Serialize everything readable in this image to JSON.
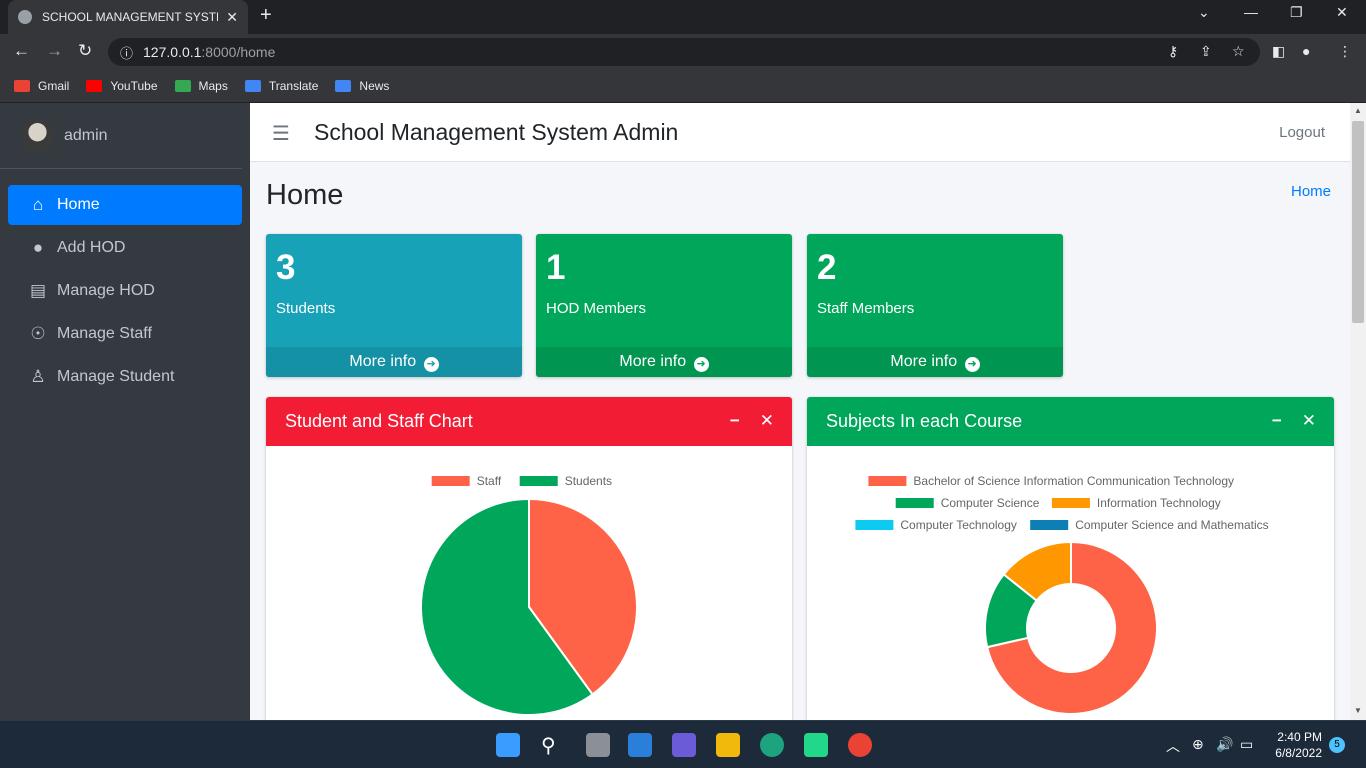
{
  "browser": {
    "tab_title": "SCHOOL MANAGEMENT SYSTEM",
    "url_host": "127.0.0.1",
    "url_path": ":8000/home",
    "bookmarks": [
      {
        "label": "Gmail",
        "color": "#ea4335"
      },
      {
        "label": "YouTube",
        "color": "#ff0000"
      },
      {
        "label": "Maps",
        "color": "#34a853"
      },
      {
        "label": "Translate",
        "color": "#4285f4"
      },
      {
        "label": "News",
        "color": "#4285f4"
      }
    ]
  },
  "sidebar": {
    "username": "admin",
    "items": [
      {
        "label": "Home",
        "icon": "home-icon",
        "active": true
      },
      {
        "label": "Add HOD",
        "icon": "user-icon"
      },
      {
        "label": "Manage HOD",
        "icon": "id-card-icon"
      },
      {
        "label": "Manage Staff",
        "icon": "universal-access-icon"
      },
      {
        "label": "Manage Student",
        "icon": "child-icon"
      }
    ]
  },
  "header": {
    "brand": "School Management System Admin",
    "logout": "Logout"
  },
  "content": {
    "title": "Home",
    "breadcrumb": "Home"
  },
  "boxes": [
    {
      "count": "3",
      "label": "Students",
      "more": "More info",
      "color": "#17a2b8"
    },
    {
      "count": "1",
      "label": "HOD Members",
      "more": "More info",
      "color": "#00a65a"
    },
    {
      "count": "2",
      "label": "Staff Members",
      "more": "More info",
      "color": "#00a65a"
    }
  ],
  "cards": {
    "left": {
      "title": "Student and Staff Chart",
      "color": "#f31c35"
    },
    "right": {
      "title": "Subjects In each Course",
      "color": "#00a65a"
    }
  },
  "chart_data": [
    {
      "type": "pie",
      "title": "Student and Staff Chart",
      "categories": [
        "Staff",
        "Students"
      ],
      "values": [
        2,
        3
      ],
      "colors": [
        "#ff6347",
        "#00a65a"
      ],
      "legend": "top"
    },
    {
      "type": "pie",
      "title": "Subjects In each Course",
      "categories": [
        "Bachelor of Science Information Communication Technology",
        "Computer Science",
        "Information Technology",
        "Computer Technology",
        "Computer Science and Mathematics"
      ],
      "values": [
        5,
        1,
        1,
        0,
        0
      ],
      "colors": [
        "#ff6347",
        "#00a65a",
        "#ff9800",
        "#0dcaf0",
        "#0d7fb5"
      ],
      "legend": "top"
    }
  ],
  "taskbar": {
    "time": "2:40 PM",
    "date": "6/8/2022",
    "notifications": "5"
  }
}
